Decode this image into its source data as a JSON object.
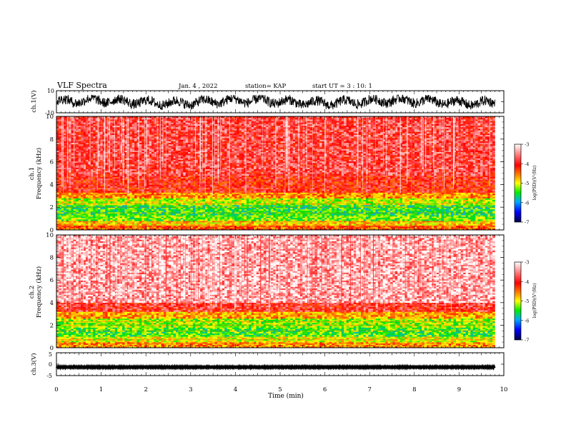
{
  "header": {
    "title": "VLF Spectra",
    "date": "Jan. 4 , 2022",
    "station": "station= KAP",
    "start": "start UT = 3 : 10: 1"
  },
  "chart_data": [
    {
      "type": "line",
      "panel": "ch1-waveform",
      "ylabel": "ch.1(V)",
      "ylim": [
        -10,
        10
      ],
      "yticks": [
        "10",
        "-10"
      ],
      "xlim": [
        0,
        10
      ],
      "approx_range": [
        -7,
        6
      ],
      "color": "#000000"
    },
    {
      "type": "heatmap",
      "panel": "ch1-spectrogram",
      "ylabel": "ch.1\nFrequency (kHz)",
      "ylabel_lines": [
        "ch.1",
        "Frequency (kHz)"
      ],
      "ylim": [
        0,
        10
      ],
      "yticks": [
        "0",
        "2",
        "4",
        "6",
        "8",
        "10"
      ],
      "xlim": [
        0,
        9.8
      ],
      "bands_log_psd": [
        {
          "fmin": 0.0,
          "fmax": 0.4,
          "level": -4.2
        },
        {
          "fmin": 0.4,
          "fmax": 0.8,
          "level": -4.6
        },
        {
          "fmin": 0.8,
          "fmax": 1.3,
          "level": -5.1
        },
        {
          "fmin": 1.3,
          "fmax": 2.2,
          "level": -5.3
        },
        {
          "fmin": 2.2,
          "fmax": 2.8,
          "level": -4.9
        },
        {
          "fmin": 2.8,
          "fmax": 3.3,
          "level": -4.4
        },
        {
          "fmin": 3.3,
          "fmax": 4.8,
          "level": -3.9
        },
        {
          "fmin": 4.8,
          "fmax": 10.0,
          "level": -3.7
        }
      ],
      "colorbar": {
        "label": "log(PSD)(V²/Hz)",
        "ticks": [
          "-3",
          "-4",
          "-5",
          "-6",
          "-7"
        ],
        "range": [
          -7,
          -3
        ]
      }
    },
    {
      "type": "heatmap",
      "panel": "ch2-spectrogram",
      "ylabel": "ch.2\nFrequency (kHz)",
      "ylabel_lines": [
        "ch.2",
        "Frequency (kHz)"
      ],
      "ylim": [
        0,
        10
      ],
      "yticks": [
        "0",
        "2",
        "4",
        "6",
        "8",
        "10"
      ],
      "xlim": [
        0,
        9.8
      ],
      "bands_log_psd": [
        {
          "fmin": 0.0,
          "fmax": 0.5,
          "level": -4.4
        },
        {
          "fmin": 0.5,
          "fmax": 1.0,
          "level": -4.8
        },
        {
          "fmin": 1.0,
          "fmax": 1.8,
          "level": -5.2
        },
        {
          "fmin": 1.8,
          "fmax": 2.6,
          "level": -5.0
        },
        {
          "fmin": 2.6,
          "fmax": 3.2,
          "level": -4.5
        },
        {
          "fmin": 3.2,
          "fmax": 4.0,
          "level": -3.8
        },
        {
          "fmin": 4.0,
          "fmax": 10.0,
          "level": -3.3
        }
      ],
      "colorbar": {
        "label": "log(PSD)(V²/Hz)",
        "ticks": [
          "-3",
          "-4",
          "-5",
          "-6",
          "-7"
        ],
        "range": [
          -7,
          -3
        ]
      }
    },
    {
      "type": "line",
      "panel": "ch3-waveform",
      "ylabel": "ch.3(V)",
      "ylim": [
        -5,
        5
      ],
      "yticks": [
        "5",
        "0",
        "-5"
      ],
      "xlim": [
        0,
        10
      ],
      "approx_level": -1.3,
      "color": "#000000"
    }
  ],
  "xaxis": {
    "label": "Time (min)",
    "ticks": [
      "0",
      "1",
      "2",
      "3",
      "4",
      "5",
      "6",
      "7",
      "8",
      "9",
      "10"
    ],
    "range": [
      0,
      10
    ]
  }
}
